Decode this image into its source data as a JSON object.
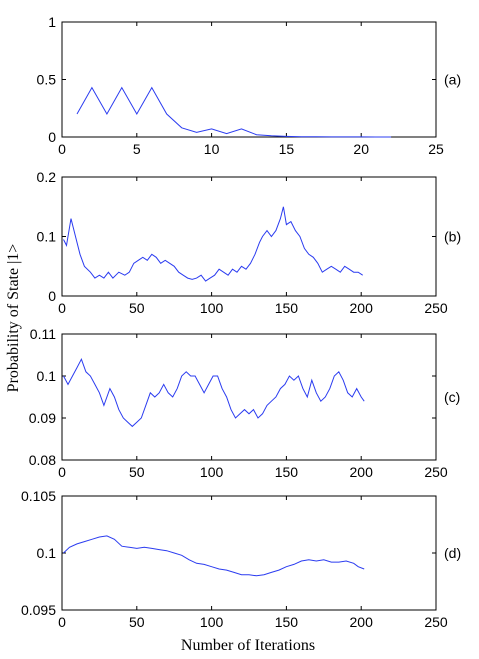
{
  "figure": {
    "xlabel": "Number of Iterations",
    "ylabel": "Probability of State |1>"
  },
  "chart_data": [
    {
      "type": "line",
      "panel_label": "(a)",
      "xlim": [
        0,
        25
      ],
      "ylim": [
        0,
        1
      ],
      "xticks": [
        0,
        5,
        10,
        15,
        20,
        25
      ],
      "yticks": [
        0,
        0.5,
        1
      ],
      "line_color": "#2b3cf0",
      "series": [
        {
          "x": [
            1,
            2,
            3,
            4,
            5,
            6,
            7,
            8,
            9,
            10,
            11,
            12,
            13,
            14,
            15,
            16,
            17,
            18,
            19,
            20,
            21,
            22
          ],
          "values": [
            0.2,
            0.43,
            0.2,
            0.43,
            0.2,
            0.43,
            0.2,
            0.08,
            0.04,
            0.07,
            0.03,
            0.07,
            0.02,
            0.01,
            0.005,
            0.003,
            0.002,
            0.001,
            0.001,
            0.0005,
            0.0003,
            0.0002
          ]
        }
      ]
    },
    {
      "type": "line",
      "panel_label": "(b)",
      "xlim": [
        0,
        250
      ],
      "ylim": [
        0,
        0.2
      ],
      "xticks": [
        0,
        50,
        100,
        150,
        200,
        250
      ],
      "yticks": [
        0,
        0.1,
        0.2
      ],
      "line_color": "#2b3cf0",
      "series": [
        {
          "x": [
            1,
            3,
            6,
            9,
            12,
            15,
            19,
            22,
            25,
            28,
            31,
            34,
            38,
            42,
            45,
            48,
            51,
            54,
            57,
            60,
            63,
            66,
            69,
            72,
            75,
            78,
            81,
            84,
            87,
            90,
            93,
            96,
            99,
            102,
            105,
            108,
            111,
            114,
            117,
            120,
            123,
            126,
            129,
            132,
            134,
            137,
            140,
            143,
            146,
            148,
            150,
            153,
            156,
            159,
            162,
            165,
            168,
            171,
            174,
            177,
            180,
            183,
            186,
            189,
            192,
            195,
            198,
            201
          ],
          "values": [
            0.095,
            0.085,
            0.13,
            0.1,
            0.07,
            0.05,
            0.04,
            0.03,
            0.035,
            0.03,
            0.04,
            0.03,
            0.04,
            0.035,
            0.04,
            0.055,
            0.06,
            0.065,
            0.06,
            0.07,
            0.065,
            0.055,
            0.06,
            0.055,
            0.05,
            0.04,
            0.035,
            0.03,
            0.028,
            0.03,
            0.035,
            0.025,
            0.03,
            0.035,
            0.045,
            0.04,
            0.035,
            0.045,
            0.04,
            0.05,
            0.045,
            0.055,
            0.07,
            0.09,
            0.1,
            0.11,
            0.1,
            0.11,
            0.13,
            0.15,
            0.12,
            0.125,
            0.11,
            0.1,
            0.08,
            0.07,
            0.065,
            0.055,
            0.04,
            0.045,
            0.05,
            0.045,
            0.04,
            0.05,
            0.045,
            0.04,
            0.04,
            0.035
          ]
        }
      ]
    },
    {
      "type": "line",
      "panel_label": "(c)",
      "xlim": [
        0,
        250
      ],
      "ylim": [
        0.08,
        0.11
      ],
      "xticks": [
        0,
        50,
        100,
        150,
        200,
        250
      ],
      "yticks": [
        0.08,
        0.09,
        0.1,
        0.11
      ],
      "line_color": "#2b3cf0",
      "series": [
        {
          "x": [
            1,
            4,
            7,
            10,
            13,
            16,
            19,
            22,
            25,
            28,
            32,
            35,
            38,
            41,
            44,
            47,
            50,
            53,
            56,
            59,
            62,
            65,
            68,
            71,
            74,
            77,
            80,
            83,
            86,
            89,
            92,
            95,
            98,
            101,
            104,
            107,
            110,
            113,
            116,
            119,
            122,
            125,
            128,
            131,
            134,
            137,
            140,
            143,
            146,
            149,
            152,
            155,
            158,
            161,
            164,
            167,
            170,
            173,
            176,
            179,
            182,
            185,
            188,
            191,
            194,
            197,
            200,
            202
          ],
          "values": [
            0.1,
            0.098,
            0.1,
            0.102,
            0.104,
            0.101,
            0.1,
            0.098,
            0.096,
            0.093,
            0.097,
            0.095,
            0.092,
            0.09,
            0.089,
            0.088,
            0.089,
            0.09,
            0.093,
            0.096,
            0.095,
            0.096,
            0.098,
            0.096,
            0.095,
            0.097,
            0.1,
            0.101,
            0.1,
            0.1,
            0.098,
            0.096,
            0.098,
            0.1,
            0.1,
            0.097,
            0.095,
            0.092,
            0.09,
            0.091,
            0.092,
            0.091,
            0.092,
            0.09,
            0.091,
            0.093,
            0.094,
            0.095,
            0.097,
            0.098,
            0.1,
            0.099,
            0.1,
            0.097,
            0.095,
            0.099,
            0.096,
            0.094,
            0.095,
            0.097,
            0.1,
            0.101,
            0.099,
            0.096,
            0.095,
            0.097,
            0.095,
            0.094
          ]
        }
      ]
    },
    {
      "type": "line",
      "panel_label": "(d)",
      "xlim": [
        0,
        250
      ],
      "ylim": [
        0.095,
        0.105
      ],
      "xticks": [
        0,
        50,
        100,
        150,
        200,
        250
      ],
      "yticks": [
        0.095,
        0.1,
        0.105
      ],
      "line_color": "#2b3cf0",
      "series": [
        {
          "x": [
            1,
            5,
            10,
            15,
            20,
            25,
            30,
            35,
            40,
            45,
            50,
            55,
            60,
            65,
            70,
            75,
            80,
            85,
            90,
            95,
            100,
            105,
            110,
            115,
            120,
            125,
            130,
            135,
            140,
            145,
            150,
            155,
            160,
            165,
            170,
            175,
            180,
            185,
            190,
            195,
            198,
            202
          ],
          "values": [
            0.1,
            0.1005,
            0.1008,
            0.101,
            0.1012,
            0.1014,
            0.1015,
            0.1012,
            0.1006,
            0.1005,
            0.1004,
            0.1005,
            0.1004,
            0.1003,
            0.1002,
            0.1,
            0.0998,
            0.0994,
            0.0991,
            0.099,
            0.0988,
            0.0986,
            0.0985,
            0.0983,
            0.0981,
            0.0981,
            0.098,
            0.0981,
            0.0983,
            0.0985,
            0.0988,
            0.099,
            0.0993,
            0.0994,
            0.0993,
            0.0994,
            0.0992,
            0.0992,
            0.0993,
            0.0991,
            0.0988,
            0.0986
          ]
        }
      ]
    }
  ]
}
